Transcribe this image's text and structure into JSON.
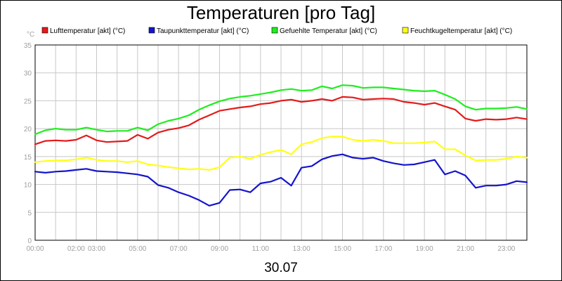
{
  "chart_data": {
    "type": "line",
    "title": "Temperaturen [pro Tag]",
    "xlabel": "30.07",
    "ylabel": "°C",
    "x_ticks": [
      "00:00",
      "02:00",
      "03:00",
      "05:00",
      "07:00",
      "09:00",
      "11:00",
      "13:00",
      "15:00",
      "17:00",
      "19:00",
      "21:00",
      "23:00"
    ],
    "x_tick_hours": [
      0,
      2,
      3,
      5,
      7,
      9,
      11,
      13,
      15,
      17,
      19,
      21,
      23
    ],
    "xlim": [
      0,
      24
    ],
    "ylim": [
      0,
      35
    ],
    "y_ticks": [
      0,
      5,
      10,
      15,
      20,
      25,
      30,
      35
    ],
    "grid": true,
    "colors": {
      "background": "#ffffff",
      "grid": "#c8c8c8",
      "axis": "#000000",
      "tick_label": "#a0a0a0"
    },
    "series": [
      {
        "name": "Lufttemperatur [akt] (°C)",
        "color": "#e41a1a",
        "x": [
          0,
          0.5,
          1,
          1.5,
          2,
          2.5,
          3,
          3.5,
          4,
          4.5,
          5,
          5.5,
          6,
          6.5,
          7,
          7.5,
          8,
          8.5,
          9,
          9.5,
          10,
          10.5,
          11,
          11.5,
          12,
          12.5,
          13,
          13.5,
          14,
          14.5,
          15,
          15.5,
          16,
          16.5,
          17,
          17.5,
          18,
          18.5,
          19,
          19.5,
          20,
          20.5,
          21,
          21.5,
          22,
          22.5,
          23,
          23.5,
          24
        ],
        "y": [
          17.2,
          17.8,
          17.9,
          17.8,
          18.0,
          18.8,
          17.9,
          17.6,
          17.7,
          17.8,
          18.9,
          18.2,
          19.3,
          19.8,
          20.1,
          20.6,
          21.6,
          22.4,
          23.2,
          23.5,
          23.8,
          24.0,
          24.4,
          24.6,
          25.0,
          25.2,
          24.8,
          25.0,
          25.3,
          25.0,
          25.7,
          25.6,
          25.2,
          25.3,
          25.4,
          25.3,
          24.8,
          24.6,
          24.3,
          24.6,
          24.0,
          23.4,
          21.8,
          21.4,
          21.7,
          21.6,
          21.7,
          22.0,
          21.7
        ]
      },
      {
        "name": "Taupunkttemperatur [akt] (°C)",
        "color": "#1414cc",
        "x": [
          0,
          0.5,
          1,
          1.5,
          2,
          2.5,
          3,
          3.5,
          4,
          4.5,
          5,
          5.5,
          6,
          6.5,
          7,
          7.5,
          8,
          8.5,
          9,
          9.5,
          10,
          10.5,
          11,
          11.5,
          12,
          12.5,
          13,
          13.5,
          14,
          14.5,
          15,
          15.5,
          16,
          16.5,
          17,
          17.5,
          18,
          18.5,
          19,
          19.5,
          20,
          20.5,
          21,
          21.5,
          22,
          22.5,
          23,
          23.5,
          24
        ],
        "y": [
          12.3,
          12.1,
          12.3,
          12.4,
          12.6,
          12.8,
          12.4,
          12.3,
          12.2,
          12.0,
          11.8,
          11.4,
          9.9,
          9.4,
          8.6,
          8.0,
          7.2,
          6.2,
          6.7,
          9.0,
          9.1,
          8.6,
          10.2,
          10.5,
          11.2,
          9.8,
          13.0,
          13.3,
          14.5,
          15.1,
          15.4,
          14.8,
          14.6,
          14.8,
          14.2,
          13.8,
          13.5,
          13.6,
          14.0,
          14.4,
          11.8,
          12.4,
          11.6,
          9.4,
          9.8,
          9.8,
          10.0,
          10.6,
          10.4
        ]
      },
      {
        "name": "Gefuehlte Temperatur [akt] (°C)",
        "color": "#1eee1e",
        "x": [
          0,
          0.5,
          1,
          1.5,
          2,
          2.5,
          3,
          3.5,
          4,
          4.5,
          5,
          5.5,
          6,
          6.5,
          7,
          7.5,
          8,
          8.5,
          9,
          9.5,
          10,
          10.5,
          11,
          11.5,
          12,
          12.5,
          13,
          13.5,
          14,
          14.5,
          15,
          15.5,
          16,
          16.5,
          17,
          17.5,
          18,
          18.5,
          19,
          19.5,
          20,
          20.5,
          21,
          21.5,
          22,
          22.5,
          23,
          23.5,
          24
        ],
        "y": [
          19.0,
          19.7,
          20.0,
          19.8,
          19.8,
          20.2,
          19.8,
          19.5,
          19.6,
          19.6,
          20.2,
          19.7,
          20.8,
          21.4,
          21.8,
          22.4,
          23.4,
          24.2,
          24.9,
          25.4,
          25.7,
          25.9,
          26.2,
          26.5,
          26.9,
          27.1,
          26.8,
          26.9,
          27.6,
          27.2,
          27.8,
          27.7,
          27.3,
          27.4,
          27.4,
          27.2,
          27.0,
          26.8,
          26.7,
          26.8,
          26.1,
          25.3,
          24.0,
          23.4,
          23.6,
          23.6,
          23.7,
          23.9,
          23.5
        ]
      },
      {
        "name": "Feuchtkugeltemperatur [akt] (°C)",
        "color": "#ffff14",
        "x": [
          0,
          0.5,
          1,
          1.5,
          2,
          2.5,
          3,
          3.5,
          4,
          4.5,
          5,
          5.5,
          6,
          6.5,
          7,
          7.5,
          8,
          8.5,
          9,
          9.5,
          10,
          10.5,
          11,
          11.5,
          12,
          12.5,
          13,
          13.5,
          14,
          14.5,
          15,
          15.5,
          16,
          16.5,
          17,
          17.5,
          18,
          18.5,
          19,
          19.5,
          20,
          20.5,
          21,
          21.5,
          22,
          22.5,
          23,
          23.5,
          24
        ],
        "y": [
          14.0,
          14.2,
          14.3,
          14.3,
          14.5,
          14.8,
          14.4,
          14.2,
          14.2,
          14.0,
          14.2,
          13.6,
          13.4,
          13.1,
          12.9,
          12.7,
          12.8,
          12.6,
          13.1,
          14.8,
          15.0,
          14.6,
          15.3,
          15.8,
          16.2,
          15.4,
          17.2,
          17.6,
          18.3,
          18.6,
          18.6,
          18.0,
          17.8,
          18.0,
          17.8,
          17.4,
          17.4,
          17.4,
          17.5,
          17.7,
          16.3,
          16.3,
          15.2,
          14.3,
          14.4,
          14.4,
          14.6,
          15.0,
          14.8
        ]
      }
    ]
  }
}
